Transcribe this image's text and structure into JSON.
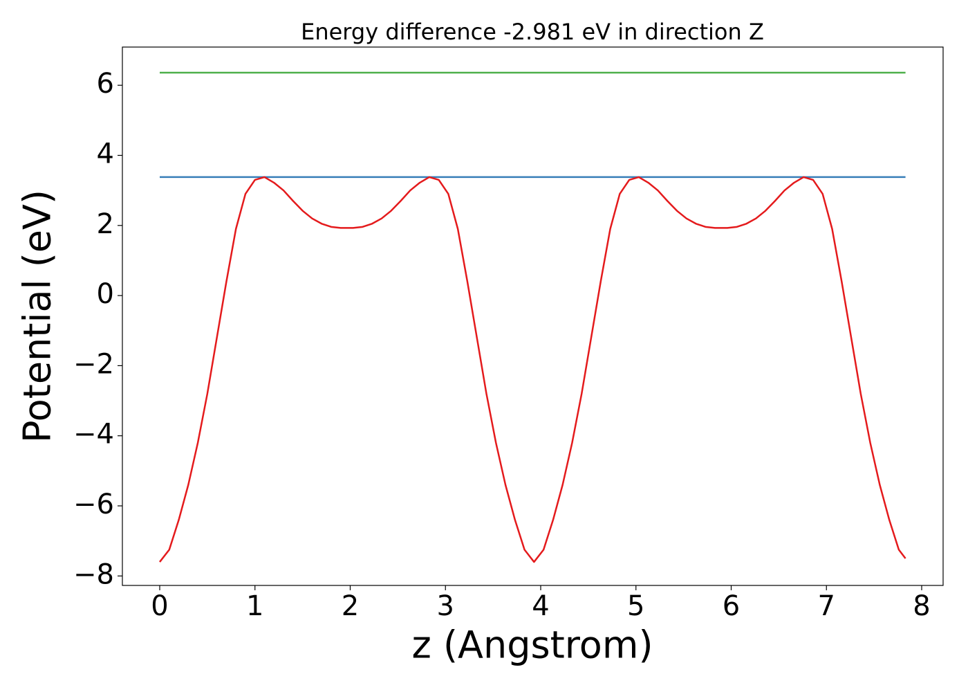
{
  "chart_data": {
    "type": "line",
    "title": "Energy difference -2.981 eV in direction Z",
    "xlabel": "z (Angstrom)",
    "ylabel": "Potential (eV)",
    "xlim": [
      -0.392,
      8.225
    ],
    "ylim": [
      -8.27,
      7.09
    ],
    "xticks": [
      0,
      1,
      2,
      3,
      4,
      5,
      6,
      7,
      8
    ],
    "yticks": [
      {
        "value": -8,
        "label": "−8"
      },
      {
        "value": -6,
        "label": "−6"
      },
      {
        "value": -4,
        "label": "−4"
      },
      {
        "value": -2,
        "label": "−2"
      },
      0,
      2,
      4,
      6
    ],
    "grid": false,
    "series": [
      {
        "color": "#e41a1c",
        "x": [
          0,
          0.1,
          0.2,
          0.3,
          0.4,
          0.5,
          0.6,
          0.7,
          0.8,
          0.9,
          1.0,
          1.1,
          1.2,
          1.3,
          1.4,
          1.5,
          1.6,
          1.7,
          1.8,
          1.9,
          2.03,
          2.13,
          2.23,
          2.33,
          2.43,
          2.53,
          2.63,
          2.73,
          2.83,
          2.93,
          3.03,
          3.13,
          3.23,
          3.33,
          3.43,
          3.53,
          3.63,
          3.73,
          3.83,
          3.93,
          4.03,
          4.13,
          4.23,
          4.33,
          4.43,
          4.53,
          4.63,
          4.73,
          4.83,
          4.93,
          5.03,
          5.13,
          5.23,
          5.33,
          5.43,
          5.53,
          5.63,
          5.73,
          5.83,
          5.96,
          6.06,
          6.16,
          6.26,
          6.36,
          6.46,
          6.56,
          6.66,
          6.76,
          6.86,
          6.96,
          7.06,
          7.16,
          7.26,
          7.36,
          7.46,
          7.56,
          7.66,
          7.76,
          7.83
        ],
        "values": [
          -7.6,
          -7.25,
          -6.4,
          -5.4,
          -4.2,
          -2.8,
          -1.2,
          0.4,
          1.9,
          2.9,
          3.3,
          3.38,
          3.22,
          3.0,
          2.7,
          2.42,
          2.2,
          2.05,
          1.96,
          1.93,
          1.93,
          1.96,
          2.05,
          2.2,
          2.42,
          2.7,
          3.0,
          3.22,
          3.38,
          3.3,
          2.9,
          1.9,
          0.4,
          -1.2,
          -2.8,
          -4.2,
          -5.4,
          -6.4,
          -7.25,
          -7.6,
          -7.25,
          -6.4,
          -5.4,
          -4.2,
          -2.8,
          -1.2,
          0.4,
          1.9,
          2.9,
          3.3,
          3.38,
          3.22,
          3.0,
          2.7,
          2.42,
          2.2,
          2.05,
          1.96,
          1.93,
          1.93,
          1.96,
          2.05,
          2.2,
          2.42,
          2.7,
          3.0,
          3.22,
          3.38,
          3.3,
          2.9,
          1.9,
          0.4,
          -1.2,
          -2.8,
          -4.2,
          -5.4,
          -6.4,
          -7.25,
          -7.5
        ]
      },
      {
        "color": "#377eb8",
        "x": [
          0,
          7.83
        ],
        "values": [
          3.38,
          3.38
        ]
      },
      {
        "color": "#4daf4a",
        "x": [
          0,
          7.83
        ],
        "values": [
          6.36,
          6.36
        ]
      }
    ]
  }
}
